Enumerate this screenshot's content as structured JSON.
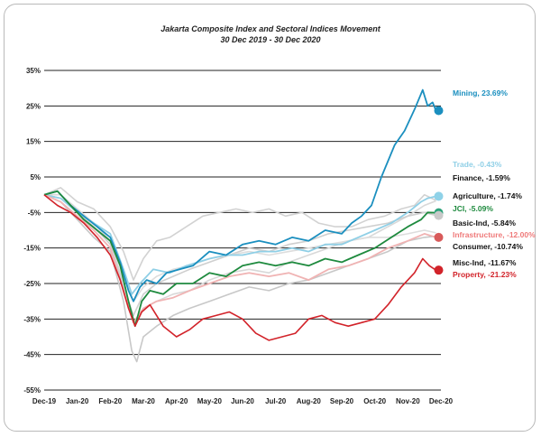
{
  "chart_data": {
    "type": "line",
    "title": "Jakarta Composite Index and Sectoral Indices Movement",
    "subtitle": "30 Dec 2019 - 30 Dec 2020",
    "xlabel": "",
    "ylabel": "",
    "x_tick_labels": [
      "Dec-19",
      "Jan-20",
      "Feb-20",
      "Mar-20",
      "Apr-20",
      "May-20",
      "Jun-20",
      "Jul-20",
      "Aug-20",
      "Sep-20",
      "Oct-20",
      "Nov-20",
      "Dec-20"
    ],
    "y_ticks": [
      35,
      25,
      15,
      5,
      -5,
      -15,
      -25,
      -35,
      -45,
      -55
    ],
    "y_tick_labels": [
      "35%",
      "25%",
      "15%",
      "5%",
      "-5%",
      "-15%",
      "-25%",
      "-35%",
      "-45%",
      "-55%"
    ],
    "ylim": [
      -55,
      35
    ],
    "xlim": [
      0,
      12
    ],
    "grid": "horizontal",
    "series": [
      {
        "name": "Mining",
        "label": "Mining, 23.69%",
        "color": "#1b8fbf",
        "label_color": "#1b8fbf",
        "final": 23.69,
        "points": [
          [
            0,
            0
          ],
          [
            0.4,
            1
          ],
          [
            0.8,
            -3
          ],
          [
            1.2,
            -6
          ],
          [
            1.6,
            -9
          ],
          [
            2,
            -12
          ],
          [
            2.3,
            -19
          ],
          [
            2.55,
            -27
          ],
          [
            2.7,
            -30
          ],
          [
            2.9,
            -26
          ],
          [
            3.1,
            -24
          ],
          [
            3.4,
            -25
          ],
          [
            3.7,
            -22
          ],
          [
            4.1,
            -21
          ],
          [
            4.5,
            -20
          ],
          [
            5,
            -16
          ],
          [
            5.5,
            -17
          ],
          [
            6,
            -14
          ],
          [
            6.5,
            -13
          ],
          [
            7,
            -14
          ],
          [
            7.5,
            -12
          ],
          [
            8,
            -13
          ],
          [
            8.5,
            -10
          ],
          [
            9,
            -11
          ],
          [
            9.3,
            -8
          ],
          [
            9.6,
            -6
          ],
          [
            9.9,
            -3
          ],
          [
            10.2,
            5
          ],
          [
            10.6,
            14
          ],
          [
            10.9,
            18
          ],
          [
            11.2,
            24
          ],
          [
            11.45,
            29.5
          ],
          [
            11.6,
            25
          ],
          [
            11.75,
            26
          ],
          [
            11.85,
            23.69
          ]
        ]
      },
      {
        "name": "Trade",
        "label": "Trade, -0.43%",
        "color": "#8fcfe6",
        "label_color": "#8fcfe6",
        "final": -0.43,
        "points": [
          [
            0,
            0
          ],
          [
            0.5,
            -1
          ],
          [
            1,
            -5
          ],
          [
            1.5,
            -8
          ],
          [
            2,
            -11
          ],
          [
            2.4,
            -21
          ],
          [
            2.65,
            -28
          ],
          [
            2.9,
            -25
          ],
          [
            3.3,
            -21
          ],
          [
            3.8,
            -22
          ],
          [
            4.3,
            -20
          ],
          [
            5,
            -18
          ],
          [
            5.5,
            -17
          ],
          [
            6,
            -17
          ],
          [
            6.5,
            -16
          ],
          [
            7,
            -16
          ],
          [
            7.5,
            -15
          ],
          [
            8,
            -16
          ],
          [
            8.5,
            -14
          ],
          [
            9,
            -14
          ],
          [
            9.5,
            -12
          ],
          [
            10,
            -10
          ],
          [
            10.5,
            -8
          ],
          [
            11,
            -5
          ],
          [
            11.4,
            -2
          ],
          [
            11.6,
            -1
          ],
          [
            11.85,
            -0.43
          ]
        ]
      },
      {
        "name": "Finance",
        "label": "Finance, -1.59%",
        "color": "#d2d2d2",
        "label_color": "#111111",
        "final": -1.59,
        "points": [
          [
            0,
            0
          ],
          [
            0.5,
            2
          ],
          [
            1,
            -2
          ],
          [
            1.5,
            -4
          ],
          [
            2,
            -9
          ],
          [
            2.4,
            -16
          ],
          [
            2.7,
            -24
          ],
          [
            3,
            -18
          ],
          [
            3.4,
            -13
          ],
          [
            3.8,
            -12
          ],
          [
            4.3,
            -9
          ],
          [
            4.8,
            -6
          ],
          [
            5.3,
            -5
          ],
          [
            5.8,
            -4
          ],
          [
            6.3,
            -5
          ],
          [
            6.8,
            -4
          ],
          [
            7.3,
            -6
          ],
          [
            7.8,
            -5
          ],
          [
            8.3,
            -8
          ],
          [
            8.8,
            -9
          ],
          [
            9.3,
            -9
          ],
          [
            9.8,
            -7
          ],
          [
            10.3,
            -6
          ],
          [
            10.8,
            -4
          ],
          [
            11.2,
            -3
          ],
          [
            11.5,
            0
          ],
          [
            11.85,
            -1.59
          ]
        ]
      },
      {
        "name": "Agriculture",
        "label": "Agriculture, -1.74%",
        "color": "#d8d8d8",
        "label_color": "#111111",
        "final": -1.74,
        "points": [
          [
            0,
            0
          ],
          [
            0.5,
            0
          ],
          [
            1,
            -4
          ],
          [
            1.5,
            -8
          ],
          [
            2,
            -13
          ],
          [
            2.4,
            -25
          ],
          [
            2.7,
            -36
          ],
          [
            3,
            -32
          ],
          [
            3.4,
            -30
          ],
          [
            3.9,
            -28
          ],
          [
            4.4,
            -27
          ],
          [
            5,
            -24
          ],
          [
            5.6,
            -22
          ],
          [
            6.2,
            -21
          ],
          [
            6.8,
            -22
          ],
          [
            7.4,
            -19
          ],
          [
            8,
            -17
          ],
          [
            8.6,
            -15
          ],
          [
            9.2,
            -13
          ],
          [
            9.8,
            -12
          ],
          [
            10.4,
            -9
          ],
          [
            11,
            -6
          ],
          [
            11.5,
            -3
          ],
          [
            11.85,
            -1.74
          ]
        ]
      },
      {
        "name": "JCI",
        "label": "JCI, -5.09%",
        "color": "#1e8a3e",
        "label_color": "#1e8a3e",
        "final": -5.09,
        "points": [
          [
            0,
            0
          ],
          [
            0.4,
            1
          ],
          [
            0.8,
            -3
          ],
          [
            1.2,
            -7
          ],
          [
            1.6,
            -10
          ],
          [
            2,
            -13
          ],
          [
            2.3,
            -20
          ],
          [
            2.55,
            -30
          ],
          [
            2.75,
            -37
          ],
          [
            2.95,
            -30
          ],
          [
            3.2,
            -27
          ],
          [
            3.6,
            -28
          ],
          [
            4,
            -25
          ],
          [
            4.5,
            -25
          ],
          [
            5,
            -22
          ],
          [
            5.5,
            -23
          ],
          [
            6,
            -20
          ],
          [
            6.5,
            -19
          ],
          [
            7,
            -20
          ],
          [
            7.5,
            -19
          ],
          [
            8,
            -20
          ],
          [
            8.5,
            -18
          ],
          [
            9,
            -19
          ],
          [
            9.5,
            -17
          ],
          [
            10,
            -15
          ],
          [
            10.5,
            -12
          ],
          [
            11,
            -9
          ],
          [
            11.4,
            -7
          ],
          [
            11.6,
            -5
          ],
          [
            11.85,
            -5.09
          ]
        ]
      },
      {
        "name": "Basic-Ind",
        "label": "Basic-Ind, -5.84%",
        "color": "#cfcfcf",
        "label_color": "#111111",
        "final": -5.84,
        "points": [
          [
            0,
            0
          ],
          [
            0.5,
            -1
          ],
          [
            1,
            -5
          ],
          [
            1.5,
            -9
          ],
          [
            2,
            -14
          ],
          [
            2.4,
            -26
          ],
          [
            2.7,
            -34
          ],
          [
            3,
            -28
          ],
          [
            3.4,
            -25
          ],
          [
            3.9,
            -23
          ],
          [
            4.4,
            -21
          ],
          [
            5,
            -19
          ],
          [
            5.6,
            -17
          ],
          [
            6.2,
            -15
          ],
          [
            6.8,
            -16
          ],
          [
            7.4,
            -14
          ],
          [
            8,
            -13
          ],
          [
            8.6,
            -11
          ],
          [
            9.2,
            -10
          ],
          [
            9.8,
            -9
          ],
          [
            10.4,
            -8
          ],
          [
            11,
            -6
          ],
          [
            11.5,
            -5
          ],
          [
            11.85,
            -5.84
          ]
        ]
      },
      {
        "name": "Infrastructure",
        "label": "Infrastructure, -12.00%",
        "color": "#f0b3b3",
        "label_color": "#ef7a7a",
        "final": -12.0,
        "points": [
          [
            0,
            0
          ],
          [
            0.5,
            -2
          ],
          [
            1,
            -6
          ],
          [
            1.5,
            -10
          ],
          [
            2,
            -15
          ],
          [
            2.4,
            -27
          ],
          [
            2.7,
            -36
          ],
          [
            3,
            -32
          ],
          [
            3.4,
            -30
          ],
          [
            3.9,
            -29
          ],
          [
            4.4,
            -27
          ],
          [
            5,
            -25
          ],
          [
            5.6,
            -23
          ],
          [
            6.2,
            -22
          ],
          [
            6.8,
            -23
          ],
          [
            7.4,
            -22
          ],
          [
            8,
            -24
          ],
          [
            8.6,
            -21
          ],
          [
            9.2,
            -20
          ],
          [
            9.8,
            -18
          ],
          [
            10.4,
            -15
          ],
          [
            11,
            -13
          ],
          [
            11.5,
            -11
          ],
          [
            11.85,
            -12
          ]
        ]
      },
      {
        "name": "Consumer",
        "label": "Consumer, -10.74%",
        "color": "#dddddd",
        "label_color": "#111111",
        "final": -10.74,
        "points": [
          [
            0,
            0
          ],
          [
            0.5,
            -1
          ],
          [
            1,
            -4
          ],
          [
            1.5,
            -8
          ],
          [
            2,
            -12
          ],
          [
            2.4,
            -22
          ],
          [
            2.7,
            -30
          ],
          [
            3,
            -26
          ],
          [
            3.4,
            -23
          ],
          [
            3.9,
            -21
          ],
          [
            4.4,
            -20
          ],
          [
            5,
            -18
          ],
          [
            5.6,
            -17
          ],
          [
            6.2,
            -16
          ],
          [
            6.8,
            -17
          ],
          [
            7.4,
            -16
          ],
          [
            8,
            -15
          ],
          [
            8.6,
            -14
          ],
          [
            9.2,
            -13
          ],
          [
            9.8,
            -12
          ],
          [
            10.4,
            -12
          ],
          [
            11,
            -11
          ],
          [
            11.5,
            -10
          ],
          [
            11.85,
            -10.74
          ]
        ]
      },
      {
        "name": "Misc-Ind",
        "label": "Misc-Ind, -11.67%",
        "color": "#c8c8c8",
        "label_color": "#111111",
        "final": -11.67,
        "points": [
          [
            0,
            0
          ],
          [
            0.5,
            -2
          ],
          [
            1,
            -7
          ],
          [
            1.5,
            -12
          ],
          [
            2,
            -16
          ],
          [
            2.4,
            -30
          ],
          [
            2.65,
            -44
          ],
          [
            2.8,
            -47
          ],
          [
            3,
            -40
          ],
          [
            3.4,
            -37
          ],
          [
            3.9,
            -34
          ],
          [
            4.4,
            -32
          ],
          [
            5,
            -30
          ],
          [
            5.6,
            -28
          ],
          [
            6.2,
            -26
          ],
          [
            6.8,
            -27
          ],
          [
            7.4,
            -25
          ],
          [
            8,
            -24
          ],
          [
            8.6,
            -22
          ],
          [
            9.2,
            -20
          ],
          [
            9.8,
            -18
          ],
          [
            10.4,
            -16
          ],
          [
            11,
            -13
          ],
          [
            11.5,
            -12
          ],
          [
            11.85,
            -11.67
          ]
        ]
      },
      {
        "name": "Property",
        "label": "Property, -21.23%",
        "color": "#d2232a",
        "label_color": "#d2232a",
        "final": -21.23,
        "points": [
          [
            0,
            0
          ],
          [
            0.4,
            -3
          ],
          [
            0.8,
            -5
          ],
          [
            1.2,
            -8
          ],
          [
            1.6,
            -12
          ],
          [
            2,
            -17
          ],
          [
            2.3,
            -24
          ],
          [
            2.55,
            -32
          ],
          [
            2.75,
            -37
          ],
          [
            2.95,
            -33
          ],
          [
            3.2,
            -31
          ],
          [
            3.6,
            -37
          ],
          [
            4,
            -40
          ],
          [
            4.4,
            -38
          ],
          [
            4.8,
            -35
          ],
          [
            5.2,
            -34
          ],
          [
            5.6,
            -33
          ],
          [
            6,
            -35
          ],
          [
            6.4,
            -39
          ],
          [
            6.8,
            -41
          ],
          [
            7.2,
            -40
          ],
          [
            7.6,
            -39
          ],
          [
            8,
            -35
          ],
          [
            8.4,
            -34
          ],
          [
            8.8,
            -36
          ],
          [
            9.2,
            -37
          ],
          [
            9.6,
            -36
          ],
          [
            10,
            -35
          ],
          [
            10.4,
            -31
          ],
          [
            10.8,
            -26
          ],
          [
            11.2,
            -22
          ],
          [
            11.45,
            -18
          ],
          [
            11.65,
            -20
          ],
          [
            11.85,
            -21.23
          ]
        ]
      }
    ]
  }
}
